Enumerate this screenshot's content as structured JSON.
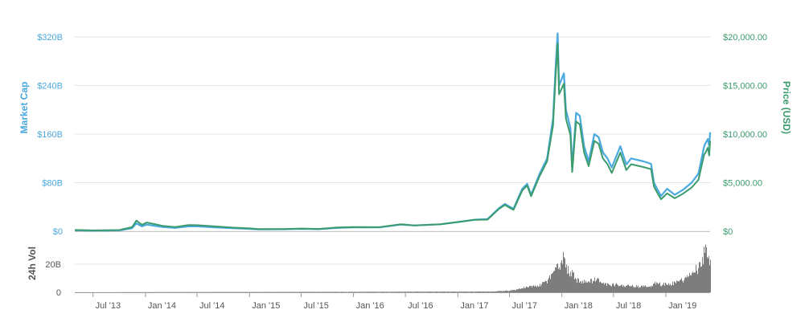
{
  "chart_data": {
    "type": "line",
    "left_axis": {
      "title": "Market Cap",
      "ticks": [
        {
          "value": 0,
          "label": "$0"
        },
        {
          "value": 80,
          "label": "$80B"
        },
        {
          "value": 160,
          "label": "$160B"
        },
        {
          "value": 240,
          "label": "$240B"
        },
        {
          "value": 320,
          "label": "$320B"
        }
      ],
      "range": [
        0,
        320
      ]
    },
    "right_axis": {
      "title": "Price (USD)",
      "ticks": [
        {
          "value": 0,
          "label": "$0"
        },
        {
          "value": 5000,
          "label": "$5,000.00"
        },
        {
          "value": 10000,
          "label": "$10,000.00"
        },
        {
          "value": 15000,
          "label": "$15,000.00"
        },
        {
          "value": 20000,
          "label": "$20,000.00"
        }
      ],
      "range": [
        0,
        20000
      ]
    },
    "volume_axis": {
      "title": "24h Vol",
      "ticks": [
        {
          "value": 0,
          "label": "0"
        },
        {
          "value": 20,
          "label": "20B"
        }
      ],
      "range": [
        0,
        40
      ]
    },
    "x_axis": {
      "range": [
        "2013-04-28",
        "2019-06-05"
      ],
      "ticks": [
        {
          "date": "2013-07-01",
          "label": "Jul '13"
        },
        {
          "date": "2014-01-01",
          "label": "Jan '14"
        },
        {
          "date": "2014-07-01",
          "label": "Jul '14"
        },
        {
          "date": "2015-01-01",
          "label": "Jan '15"
        },
        {
          "date": "2015-07-01",
          "label": "Jul '15"
        },
        {
          "date": "2016-01-01",
          "label": "Jan '16"
        },
        {
          "date": "2016-07-01",
          "label": "Jul '16"
        },
        {
          "date": "2017-01-01",
          "label": "Jan '17"
        },
        {
          "date": "2017-07-01",
          "label": "Jul '17"
        },
        {
          "date": "2018-01-01",
          "label": "Jan '18"
        },
        {
          "date": "2018-07-01",
          "label": "Jul '18"
        },
        {
          "date": "2019-01-01",
          "label": "Jan '19"
        }
      ]
    },
    "grid": true,
    "colors": {
      "market_cap": "#4aa9df",
      "price": "#3a9b6c",
      "volume": "#7d7d7d"
    },
    "series": [
      {
        "key": "market_cap",
        "axis": "left",
        "points": [
          [
            "2013-04-28",
            1.5
          ],
          [
            "2013-07-01",
            1.1
          ],
          [
            "2013-10-01",
            1.5
          ],
          [
            "2013-11-15",
            5.0
          ],
          [
            "2013-11-30",
            13.0
          ],
          [
            "2013-12-10",
            10.5
          ],
          [
            "2013-12-20",
            8.0
          ],
          [
            "2014-01-05",
            11.0
          ],
          [
            "2014-02-01",
            9.0
          ],
          [
            "2014-03-01",
            7.0
          ],
          [
            "2014-04-15",
            5.5
          ],
          [
            "2014-06-01",
            8.0
          ],
          [
            "2014-07-01",
            8.0
          ],
          [
            "2014-09-01",
            6.5
          ],
          [
            "2014-11-01",
            5.0
          ],
          [
            "2015-01-01",
            4.0
          ],
          [
            "2015-02-01",
            3.2
          ],
          [
            "2015-05-01",
            3.3
          ],
          [
            "2015-07-01",
            4.0
          ],
          [
            "2015-09-01",
            3.5
          ],
          [
            "2015-11-05",
            5.5
          ],
          [
            "2016-01-01",
            6.5
          ],
          [
            "2016-04-01",
            6.5
          ],
          [
            "2016-06-15",
            11.0
          ],
          [
            "2016-08-01",
            9.5
          ],
          [
            "2016-11-01",
            11.5
          ],
          [
            "2017-01-01",
            15.0
          ],
          [
            "2017-03-01",
            19.0
          ],
          [
            "2017-04-15",
            20.0
          ],
          [
            "2017-05-25",
            38.0
          ],
          [
            "2017-06-15",
            45.0
          ],
          [
            "2017-07-15",
            37.0
          ],
          [
            "2017-08-15",
            70.0
          ],
          [
            "2017-09-01",
            78.0
          ],
          [
            "2017-09-15",
            60.0
          ],
          [
            "2017-10-15",
            95.0
          ],
          [
            "2017-11-10",
            120.0
          ],
          [
            "2017-12-01",
            185.0
          ],
          [
            "2017-12-10",
            270.0
          ],
          [
            "2017-12-17",
            326.0
          ],
          [
            "2017-12-22",
            240.0
          ],
          [
            "2018-01-08",
            260.0
          ],
          [
            "2018-01-15",
            200.0
          ],
          [
            "2018-01-31",
            170.0
          ],
          [
            "2018-02-06",
            105.0
          ],
          [
            "2018-02-20",
            195.0
          ],
          [
            "2018-03-05",
            190.0
          ],
          [
            "2018-03-20",
            140.0
          ],
          [
            "2018-04-05",
            115.0
          ],
          [
            "2018-04-25",
            160.0
          ],
          [
            "2018-05-10",
            155.0
          ],
          [
            "2018-05-25",
            130.0
          ],
          [
            "2018-06-10",
            120.0
          ],
          [
            "2018-06-25",
            105.0
          ],
          [
            "2018-07-25",
            140.0
          ],
          [
            "2018-08-15",
            110.0
          ],
          [
            "2018-09-01",
            120.0
          ],
          [
            "2018-10-15",
            115.0
          ],
          [
            "2018-11-10",
            111.0
          ],
          [
            "2018-11-20",
            80.0
          ],
          [
            "2018-12-01",
            70.0
          ],
          [
            "2018-12-15",
            58.0
          ],
          [
            "2019-01-05",
            70.0
          ],
          [
            "2019-02-01",
            60.0
          ],
          [
            "2019-03-01",
            68.0
          ],
          [
            "2019-04-01",
            80.0
          ],
          [
            "2019-04-25",
            95.0
          ],
          [
            "2019-05-15",
            140.0
          ],
          [
            "2019-05-20",
            145.0
          ],
          [
            "2019-05-28",
            152.0
          ],
          [
            "2019-06-02",
            140.0
          ],
          [
            "2019-06-05",
            163.0
          ]
        ]
      },
      {
        "key": "price",
        "axis": "right",
        "points": [
          [
            "2013-04-28",
            135
          ],
          [
            "2013-07-01",
            90
          ],
          [
            "2013-10-01",
            125
          ],
          [
            "2013-11-15",
            420
          ],
          [
            "2013-11-30",
            1100
          ],
          [
            "2013-12-10",
            880
          ],
          [
            "2013-12-20",
            660
          ],
          [
            "2014-01-05",
            900
          ],
          [
            "2014-02-01",
            740
          ],
          [
            "2014-03-01",
            560
          ],
          [
            "2014-04-15",
            440
          ],
          [
            "2014-06-01",
            640
          ],
          [
            "2014-07-01",
            630
          ],
          [
            "2014-09-01",
            500
          ],
          [
            "2014-11-01",
            380
          ],
          [
            "2015-01-01",
            300
          ],
          [
            "2015-02-01",
            230
          ],
          [
            "2015-05-01",
            235
          ],
          [
            "2015-07-01",
            285
          ],
          [
            "2015-09-01",
            240
          ],
          [
            "2015-11-05",
            400
          ],
          [
            "2016-01-01",
            430
          ],
          [
            "2016-04-01",
            420
          ],
          [
            "2016-06-15",
            720
          ],
          [
            "2016-08-01",
            600
          ],
          [
            "2016-11-01",
            720
          ],
          [
            "2017-01-01",
            960
          ],
          [
            "2017-03-01",
            1180
          ],
          [
            "2017-04-15",
            1200
          ],
          [
            "2017-05-25",
            2300
          ],
          [
            "2017-06-15",
            2700
          ],
          [
            "2017-07-15",
            2200
          ],
          [
            "2017-08-15",
            4200
          ],
          [
            "2017-09-01",
            4700
          ],
          [
            "2017-09-15",
            3600
          ],
          [
            "2017-10-15",
            5700
          ],
          [
            "2017-11-10",
            7200
          ],
          [
            "2017-12-01",
            10900
          ],
          [
            "2017-12-10",
            16000
          ],
          [
            "2017-12-17",
            19300
          ],
          [
            "2017-12-22",
            14100
          ],
          [
            "2018-01-08",
            15200
          ],
          [
            "2018-01-15",
            11600
          ],
          [
            "2018-01-31",
            9900
          ],
          [
            "2018-02-06",
            6100
          ],
          [
            "2018-02-20",
            11300
          ],
          [
            "2018-03-05",
            11000
          ],
          [
            "2018-03-20",
            8100
          ],
          [
            "2018-04-05",
            6700
          ],
          [
            "2018-04-25",
            9300
          ],
          [
            "2018-05-10",
            9000
          ],
          [
            "2018-05-25",
            7500
          ],
          [
            "2018-06-10",
            6900
          ],
          [
            "2018-06-25",
            6000
          ],
          [
            "2018-07-25",
            8100
          ],
          [
            "2018-08-15",
            6300
          ],
          [
            "2018-09-01",
            6900
          ],
          [
            "2018-10-15",
            6600
          ],
          [
            "2018-11-10",
            6400
          ],
          [
            "2018-11-20",
            4600
          ],
          [
            "2018-12-01",
            4000
          ],
          [
            "2018-12-15",
            3300
          ],
          [
            "2019-01-05",
            3900
          ],
          [
            "2019-02-01",
            3400
          ],
          [
            "2019-03-01",
            3850
          ],
          [
            "2019-04-01",
            4500
          ],
          [
            "2019-04-25",
            5300
          ],
          [
            "2019-05-15",
            7900
          ],
          [
            "2019-05-20",
            8100
          ],
          [
            "2019-05-28",
            8600
          ],
          [
            "2019-06-02",
            7800
          ],
          [
            "2019-06-05",
            9300
          ]
        ]
      },
      {
        "key": "volume",
        "axis": "volume",
        "points": [
          [
            "2013-04-28",
            0.0
          ],
          [
            "2017-05-01",
            0.5
          ],
          [
            "2017-06-15",
            1.0
          ],
          [
            "2017-07-15",
            1.5
          ],
          [
            "2017-08-15",
            3.0
          ],
          [
            "2017-09-15",
            4.0
          ],
          [
            "2017-10-15",
            5.0
          ],
          [
            "2017-11-15",
            9.0
          ],
          [
            "2017-12-01",
            16.0
          ],
          [
            "2017-12-20",
            20.0
          ],
          [
            "2018-01-05",
            24.0
          ],
          [
            "2018-01-20",
            16.0
          ],
          [
            "2018-02-06",
            13.0
          ],
          [
            "2018-02-20",
            9.0
          ],
          [
            "2018-03-15",
            7.0
          ],
          [
            "2018-04-15",
            8.0
          ],
          [
            "2018-05-01",
            9.0
          ],
          [
            "2018-05-20",
            7.0
          ],
          [
            "2018-06-15",
            5.0
          ],
          [
            "2018-07-20",
            5.5
          ],
          [
            "2018-08-15",
            4.5
          ],
          [
            "2018-10-01",
            4.0
          ],
          [
            "2018-11-01",
            4.0
          ],
          [
            "2018-11-25",
            6.5
          ],
          [
            "2018-12-15",
            5.5
          ],
          [
            "2019-01-15",
            6.0
          ],
          [
            "2019-02-15",
            7.5
          ],
          [
            "2019-03-15",
            10.0
          ],
          [
            "2019-04-10",
            15.0
          ],
          [
            "2019-05-01",
            18.0
          ],
          [
            "2019-05-15",
            28.0
          ],
          [
            "2019-05-22",
            33.0
          ],
          [
            "2019-05-28",
            27.0
          ],
          [
            "2019-06-05",
            22.0
          ]
        ]
      }
    ]
  }
}
